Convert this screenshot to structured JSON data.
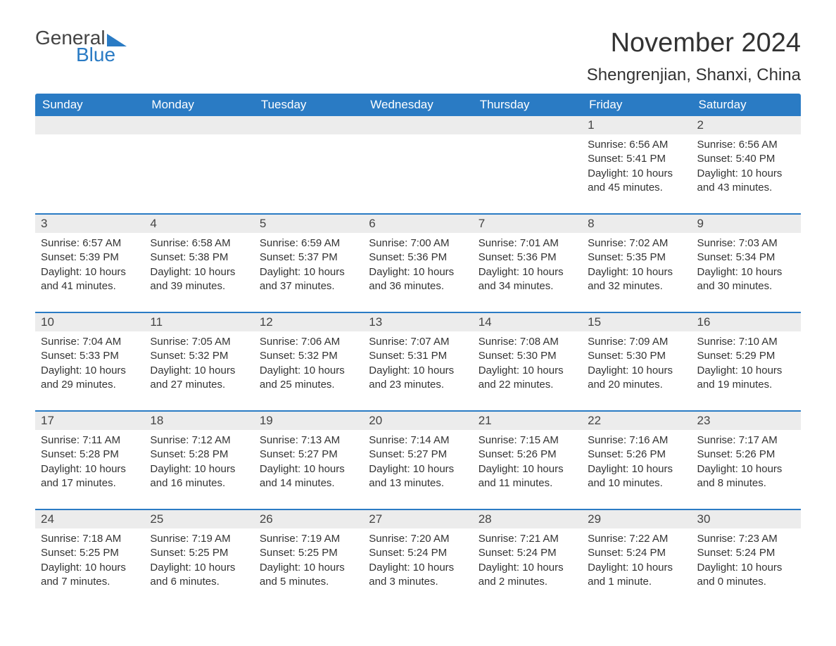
{
  "logo": {
    "text_general": "General",
    "text_blue": "Blue"
  },
  "title": "November 2024",
  "location": "Shengrenjian, Shanxi, China",
  "colors": {
    "header_bg": "#2a7bc4",
    "header_text": "#ffffff",
    "daynum_bg": "#ececec",
    "body_text": "#333333",
    "rule": "#2a7bc4",
    "background": "#ffffff"
  },
  "day_names": [
    "Sunday",
    "Monday",
    "Tuesday",
    "Wednesday",
    "Thursday",
    "Friday",
    "Saturday"
  ],
  "weeks": [
    [
      null,
      null,
      null,
      null,
      null,
      {
        "n": "1",
        "sunrise": "Sunrise: 6:56 AM",
        "sunset": "Sunset: 5:41 PM",
        "day1": "Daylight: 10 hours",
        "day2": "and 45 minutes."
      },
      {
        "n": "2",
        "sunrise": "Sunrise: 6:56 AM",
        "sunset": "Sunset: 5:40 PM",
        "day1": "Daylight: 10 hours",
        "day2": "and 43 minutes."
      }
    ],
    [
      {
        "n": "3",
        "sunrise": "Sunrise: 6:57 AM",
        "sunset": "Sunset: 5:39 PM",
        "day1": "Daylight: 10 hours",
        "day2": "and 41 minutes."
      },
      {
        "n": "4",
        "sunrise": "Sunrise: 6:58 AM",
        "sunset": "Sunset: 5:38 PM",
        "day1": "Daylight: 10 hours",
        "day2": "and 39 minutes."
      },
      {
        "n": "5",
        "sunrise": "Sunrise: 6:59 AM",
        "sunset": "Sunset: 5:37 PM",
        "day1": "Daylight: 10 hours",
        "day2": "and 37 minutes."
      },
      {
        "n": "6",
        "sunrise": "Sunrise: 7:00 AM",
        "sunset": "Sunset: 5:36 PM",
        "day1": "Daylight: 10 hours",
        "day2": "and 36 minutes."
      },
      {
        "n": "7",
        "sunrise": "Sunrise: 7:01 AM",
        "sunset": "Sunset: 5:36 PM",
        "day1": "Daylight: 10 hours",
        "day2": "and 34 minutes."
      },
      {
        "n": "8",
        "sunrise": "Sunrise: 7:02 AM",
        "sunset": "Sunset: 5:35 PM",
        "day1": "Daylight: 10 hours",
        "day2": "and 32 minutes."
      },
      {
        "n": "9",
        "sunrise": "Sunrise: 7:03 AM",
        "sunset": "Sunset: 5:34 PM",
        "day1": "Daylight: 10 hours",
        "day2": "and 30 minutes."
      }
    ],
    [
      {
        "n": "10",
        "sunrise": "Sunrise: 7:04 AM",
        "sunset": "Sunset: 5:33 PM",
        "day1": "Daylight: 10 hours",
        "day2": "and 29 minutes."
      },
      {
        "n": "11",
        "sunrise": "Sunrise: 7:05 AM",
        "sunset": "Sunset: 5:32 PM",
        "day1": "Daylight: 10 hours",
        "day2": "and 27 minutes."
      },
      {
        "n": "12",
        "sunrise": "Sunrise: 7:06 AM",
        "sunset": "Sunset: 5:32 PM",
        "day1": "Daylight: 10 hours",
        "day2": "and 25 minutes."
      },
      {
        "n": "13",
        "sunrise": "Sunrise: 7:07 AM",
        "sunset": "Sunset: 5:31 PM",
        "day1": "Daylight: 10 hours",
        "day2": "and 23 minutes."
      },
      {
        "n": "14",
        "sunrise": "Sunrise: 7:08 AM",
        "sunset": "Sunset: 5:30 PM",
        "day1": "Daylight: 10 hours",
        "day2": "and 22 minutes."
      },
      {
        "n": "15",
        "sunrise": "Sunrise: 7:09 AM",
        "sunset": "Sunset: 5:30 PM",
        "day1": "Daylight: 10 hours",
        "day2": "and 20 minutes."
      },
      {
        "n": "16",
        "sunrise": "Sunrise: 7:10 AM",
        "sunset": "Sunset: 5:29 PM",
        "day1": "Daylight: 10 hours",
        "day2": "and 19 minutes."
      }
    ],
    [
      {
        "n": "17",
        "sunrise": "Sunrise: 7:11 AM",
        "sunset": "Sunset: 5:28 PM",
        "day1": "Daylight: 10 hours",
        "day2": "and 17 minutes."
      },
      {
        "n": "18",
        "sunrise": "Sunrise: 7:12 AM",
        "sunset": "Sunset: 5:28 PM",
        "day1": "Daylight: 10 hours",
        "day2": "and 16 minutes."
      },
      {
        "n": "19",
        "sunrise": "Sunrise: 7:13 AM",
        "sunset": "Sunset: 5:27 PM",
        "day1": "Daylight: 10 hours",
        "day2": "and 14 minutes."
      },
      {
        "n": "20",
        "sunrise": "Sunrise: 7:14 AM",
        "sunset": "Sunset: 5:27 PM",
        "day1": "Daylight: 10 hours",
        "day2": "and 13 minutes."
      },
      {
        "n": "21",
        "sunrise": "Sunrise: 7:15 AM",
        "sunset": "Sunset: 5:26 PM",
        "day1": "Daylight: 10 hours",
        "day2": "and 11 minutes."
      },
      {
        "n": "22",
        "sunrise": "Sunrise: 7:16 AM",
        "sunset": "Sunset: 5:26 PM",
        "day1": "Daylight: 10 hours",
        "day2": "and 10 minutes."
      },
      {
        "n": "23",
        "sunrise": "Sunrise: 7:17 AM",
        "sunset": "Sunset: 5:26 PM",
        "day1": "Daylight: 10 hours",
        "day2": "and 8 minutes."
      }
    ],
    [
      {
        "n": "24",
        "sunrise": "Sunrise: 7:18 AM",
        "sunset": "Sunset: 5:25 PM",
        "day1": "Daylight: 10 hours",
        "day2": "and 7 minutes."
      },
      {
        "n": "25",
        "sunrise": "Sunrise: 7:19 AM",
        "sunset": "Sunset: 5:25 PM",
        "day1": "Daylight: 10 hours",
        "day2": "and 6 minutes."
      },
      {
        "n": "26",
        "sunrise": "Sunrise: 7:19 AM",
        "sunset": "Sunset: 5:25 PM",
        "day1": "Daylight: 10 hours",
        "day2": "and 5 minutes."
      },
      {
        "n": "27",
        "sunrise": "Sunrise: 7:20 AM",
        "sunset": "Sunset: 5:24 PM",
        "day1": "Daylight: 10 hours",
        "day2": "and 3 minutes."
      },
      {
        "n": "28",
        "sunrise": "Sunrise: 7:21 AM",
        "sunset": "Sunset: 5:24 PM",
        "day1": "Daylight: 10 hours",
        "day2": "and 2 minutes."
      },
      {
        "n": "29",
        "sunrise": "Sunrise: 7:22 AM",
        "sunset": "Sunset: 5:24 PM",
        "day1": "Daylight: 10 hours",
        "day2": "and 1 minute."
      },
      {
        "n": "30",
        "sunrise": "Sunrise: 7:23 AM",
        "sunset": "Sunset: 5:24 PM",
        "day1": "Daylight: 10 hours",
        "day2": "and 0 minutes."
      }
    ]
  ]
}
